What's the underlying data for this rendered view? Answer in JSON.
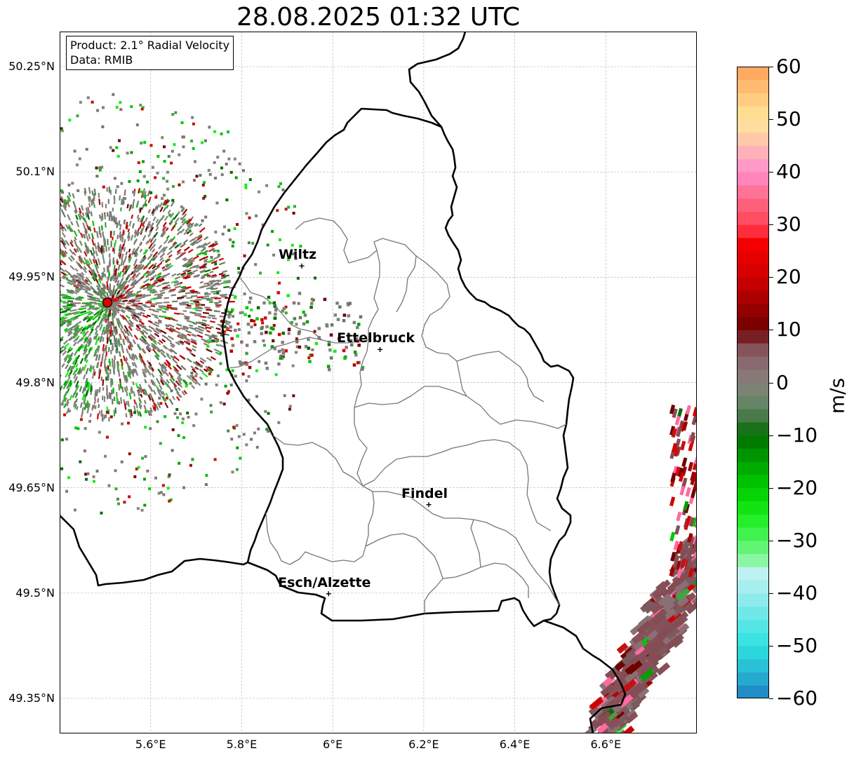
{
  "title": "28.08.2025 01:32 UTC",
  "info": {
    "product": "Product: 2.1° Radial Velocity",
    "data": "Data: RMIB"
  },
  "map": {
    "lon_range": [
      5.4,
      6.8
    ],
    "lat_range": [
      49.3,
      50.3
    ],
    "lon_ticks": [
      {
        "value": 5.6,
        "label": "5.6°E"
      },
      {
        "value": 5.8,
        "label": "5.8°E"
      },
      {
        "value": 6.0,
        "label": "6°E"
      },
      {
        "value": 6.2,
        "label": "6.2°E"
      },
      {
        "value": 6.4,
        "label": "6.4°E"
      },
      {
        "value": 6.6,
        "label": "6.6°E"
      }
    ],
    "lat_ticks": [
      {
        "value": 49.35,
        "label": "49.35°N"
      },
      {
        "value": 49.5,
        "label": "49.5°N"
      },
      {
        "value": 49.65,
        "label": "49.65°N"
      },
      {
        "value": 49.8,
        "label": "49.8°N"
      },
      {
        "value": 49.95,
        "label": "49.95°N"
      },
      {
        "value": 50.1,
        "label": "50.1°N"
      },
      {
        "value": 50.25,
        "label": "50.25°N"
      }
    ],
    "grid": true,
    "radar_site": {
      "lon": 5.505,
      "lat": 49.914
    },
    "cities": [
      {
        "name": "Wiltz",
        "lon": 5.932,
        "lat": 49.966
      },
      {
        "name": "Ettelbruck",
        "lon": 6.104,
        "lat": 49.847
      },
      {
        "name": "Findel",
        "lon": 6.211,
        "lat": 49.626
      },
      {
        "name": "Esch/Alzette",
        "lon": 5.991,
        "lat": 49.499
      }
    ]
  },
  "colorbar": {
    "unit": "m/s",
    "min": -60,
    "max": 60,
    "ticks": [
      {
        "value": 60,
        "label": "60"
      },
      {
        "value": 50,
        "label": "50"
      },
      {
        "value": 40,
        "label": "40"
      },
      {
        "value": 30,
        "label": "30"
      },
      {
        "value": 20,
        "label": "20"
      },
      {
        "value": 10,
        "label": "10"
      },
      {
        "value": 0,
        "label": "0"
      },
      {
        "value": -10,
        "label": "−10"
      },
      {
        "value": -20,
        "label": "−20"
      },
      {
        "value": -30,
        "label": "−30"
      },
      {
        "value": -40,
        "label": "−40"
      },
      {
        "value": -50,
        "label": "−50"
      },
      {
        "value": -60,
        "label": "−60"
      }
    ],
    "stops": [
      {
        "value": -60,
        "color": "#1f7fc4"
      },
      {
        "value": -55,
        "color": "#27b7d2"
      },
      {
        "value": -50,
        "color": "#2de0e0"
      },
      {
        "value": -45,
        "color": "#62e6e6"
      },
      {
        "value": -40,
        "color": "#9eecec"
      },
      {
        "value": -36,
        "color": "#bff1f1"
      },
      {
        "value": -34,
        "color": "#8ef5a6"
      },
      {
        "value": -30,
        "color": "#4cf45e"
      },
      {
        "value": -25,
        "color": "#18ec18"
      },
      {
        "value": -20,
        "color": "#00cc00"
      },
      {
        "value": -15,
        "color": "#00a000"
      },
      {
        "value": -10,
        "color": "#006e00"
      },
      {
        "value": -6,
        "color": "#4f7b4f"
      },
      {
        "value": -3,
        "color": "#6e886e"
      },
      {
        "value": 0,
        "color": "#878078"
      },
      {
        "value": 3,
        "color": "#8a6f75"
      },
      {
        "value": 7,
        "color": "#844d54"
      },
      {
        "value": 10,
        "color": "#6e0000"
      },
      {
        "value": 15,
        "color": "#a00000"
      },
      {
        "value": 20,
        "color": "#d00000"
      },
      {
        "value": 28,
        "color": "#ff0000"
      },
      {
        "value": 29,
        "color": "#ff3c4e"
      },
      {
        "value": 35,
        "color": "#ff6a84"
      },
      {
        "value": 40,
        "color": "#ff8ecc"
      },
      {
        "value": 44,
        "color": "#ffb2b8"
      },
      {
        "value": 47,
        "color": "#ffd2a4"
      },
      {
        "value": 50,
        "color": "#ffe69a"
      },
      {
        "value": 55,
        "color": "#ffc47a"
      },
      {
        "value": 60,
        "color": "#ffa058"
      }
    ]
  }
}
